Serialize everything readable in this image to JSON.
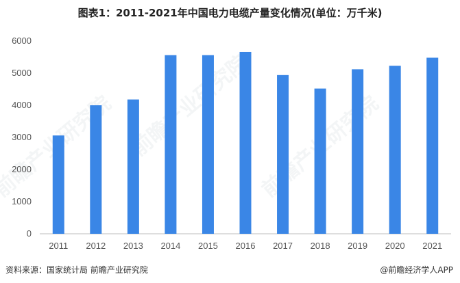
{
  "header": {
    "title": "图表1：2011-2021年中国电力电缆产量变化情况(单位：万千米)"
  },
  "footer": {
    "source": "资料来源：国家统计局 前瞻产业研究院",
    "brand": "@前瞻经济学人APP"
  },
  "watermark": {
    "text": "前瞻产业研究院"
  },
  "colors": {
    "bar": "#3a86e6",
    "axis": "#bdbdbd"
  },
  "chart_data": {
    "type": "bar",
    "categories": [
      "2011",
      "2012",
      "2013",
      "2014",
      "2015",
      "2016",
      "2017",
      "2018",
      "2019",
      "2020",
      "2021"
    ],
    "values": [
      3060,
      4000,
      4180,
      5560,
      5560,
      5660,
      4940,
      4520,
      5120,
      5230,
      5480
    ],
    "ylim": [
      0,
      6000
    ],
    "yticks": [
      0,
      1000,
      2000,
      3000,
      4000,
      5000,
      6000
    ],
    "grid": false,
    "legend": "none"
  }
}
